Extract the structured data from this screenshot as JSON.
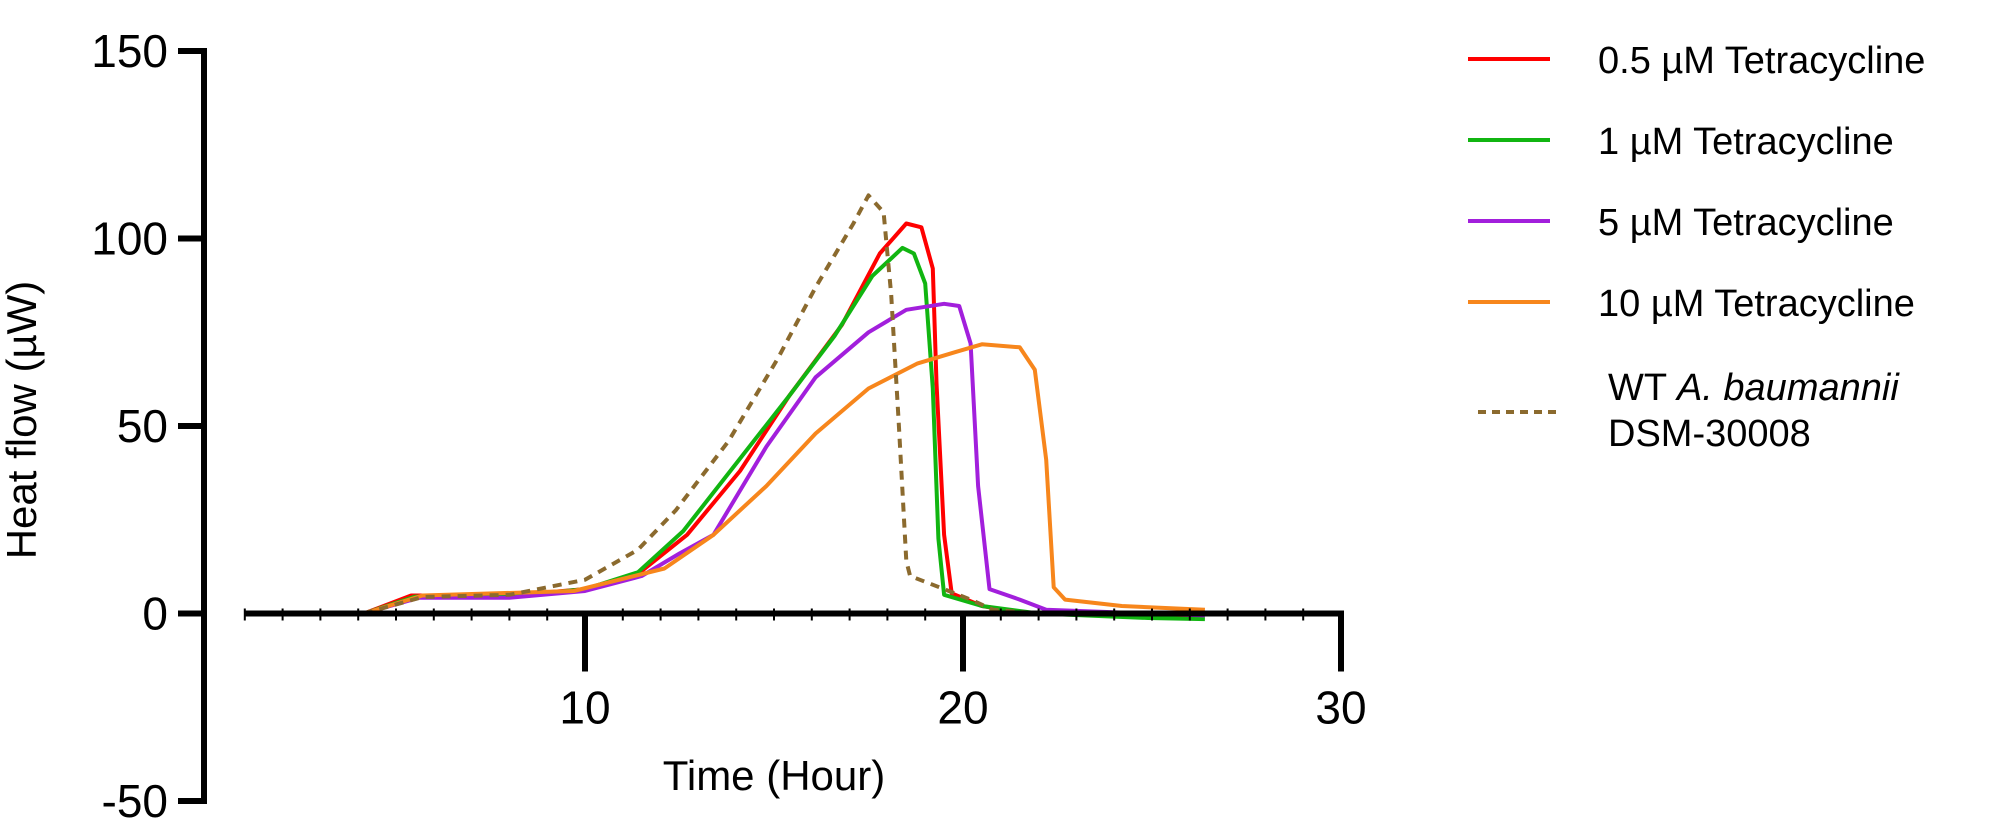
{
  "chart_data": {
    "type": "line",
    "title": "",
    "xlabel": "Time (Hour)",
    "ylabel": "Heat flow (µW)",
    "xlim": [
      0,
      30
    ],
    "ylim": [
      -50,
      150
    ],
    "xticks": [
      "10",
      "20",
      "30"
    ],
    "xtick_values": [
      10,
      20,
      30
    ],
    "yticks": [
      "150",
      "100",
      "50",
      "0",
      "-50"
    ],
    "ytick_values": [
      150,
      100,
      50,
      0,
      -50
    ],
    "grid": false,
    "legend_position": "top-right",
    "series": [
      {
        "name": "0.5 µM Tetracycline",
        "color": "#ff0000",
        "dash": false,
        "points": [
          [
            4.15,
            0
          ],
          [
            5.4,
            4.8
          ],
          [
            8,
            4.8
          ],
          [
            10,
            6.5
          ],
          [
            11.4,
            10.5
          ],
          [
            12.7,
            21
          ],
          [
            14.1,
            38
          ],
          [
            15.4,
            58
          ],
          [
            16.8,
            77
          ],
          [
            17.8,
            96
          ],
          [
            18.5,
            104
          ],
          [
            18.9,
            103
          ],
          [
            19.2,
            92
          ],
          [
            19.3,
            61.5
          ],
          [
            19.5,
            21
          ],
          [
            19.7,
            5.4
          ],
          [
            20.5,
            2
          ],
          [
            21.5,
            0.3
          ],
          [
            24.9,
            -0.7
          ],
          [
            26.4,
            -0.3
          ]
        ]
      },
      {
        "name": "1 µM Tetracycline",
        "color": "#11b511",
        "dash": false,
        "points": [
          [
            4.15,
            0
          ],
          [
            5.5,
            4.5
          ],
          [
            8,
            4.5
          ],
          [
            10,
            6.5
          ],
          [
            11.4,
            11
          ],
          [
            12.6,
            22
          ],
          [
            14,
            40
          ],
          [
            15.4,
            58
          ],
          [
            16.6,
            74
          ],
          [
            17.6,
            90
          ],
          [
            18.4,
            97.5
          ],
          [
            18.7,
            96
          ],
          [
            19,
            88
          ],
          [
            19.2,
            60
          ],
          [
            19.35,
            20
          ],
          [
            19.5,
            5
          ],
          [
            20.5,
            2
          ],
          [
            22,
            0
          ],
          [
            24.9,
            -1.2
          ],
          [
            26.4,
            -1.5
          ]
        ]
      },
      {
        "name": "5 µM Tetracycline",
        "color": "#a21fdc",
        "dash": false,
        "points": [
          [
            4.15,
            0
          ],
          [
            5.6,
            4.2
          ],
          [
            8,
            4.2
          ],
          [
            10,
            6
          ],
          [
            11.5,
            10
          ],
          [
            12.5,
            16
          ],
          [
            13.4,
            21
          ],
          [
            14.8,
            44.5
          ],
          [
            16.1,
            63
          ],
          [
            17.5,
            75
          ],
          [
            18.5,
            81
          ],
          [
            19.5,
            82.6
          ],
          [
            19.9,
            82
          ],
          [
            20.2,
            72
          ],
          [
            20.4,
            34
          ],
          [
            20.7,
            6.5
          ],
          [
            21.5,
            3.7
          ],
          [
            22.2,
            1
          ],
          [
            24.9,
            0
          ],
          [
            26.4,
            -0.5
          ]
        ]
      },
      {
        "name": "10 µM Tetracycline",
        "color": "#f7861c",
        "dash": false,
        "points": [
          [
            4.15,
            0
          ],
          [
            5.7,
            4.8
          ],
          [
            9.7,
            6
          ],
          [
            12.1,
            12
          ],
          [
            13.4,
            21
          ],
          [
            14.8,
            34
          ],
          [
            16.1,
            48
          ],
          [
            17.5,
            60
          ],
          [
            18.8,
            66.7
          ],
          [
            19.8,
            69.7
          ],
          [
            20.5,
            71.8
          ],
          [
            21.5,
            71
          ],
          [
            21.9,
            65
          ],
          [
            22.2,
            41
          ],
          [
            22.4,
            7
          ],
          [
            22.7,
            3.7
          ],
          [
            24.2,
            2
          ],
          [
            26.4,
            1
          ]
        ]
      },
      {
        "name": "WT A. baumannii DSM-30008",
        "color": "#8b6a2e",
        "dash": true,
        "points": [
          [
            4.15,
            0
          ],
          [
            5.7,
            4.4
          ],
          [
            8,
            5
          ],
          [
            10,
            9
          ],
          [
            11.4,
            17
          ],
          [
            12.4,
            27.5
          ],
          [
            13.8,
            46
          ],
          [
            15.1,
            68
          ],
          [
            16.1,
            87
          ],
          [
            17.1,
            104
          ],
          [
            17.5,
            111.5
          ],
          [
            17.9,
            107
          ],
          [
            18.1,
            85
          ],
          [
            18.3,
            51
          ],
          [
            18.5,
            14
          ],
          [
            18.6,
            10
          ],
          [
            19.5,
            6.5
          ],
          [
            20.2,
            3.7
          ],
          [
            20.8,
            1
          ],
          [
            22,
            0
          ]
        ]
      }
    ],
    "legend": [
      {
        "label": "0.5 µM Tetracycline"
      },
      {
        "label": "1 µM Tetracycline"
      },
      {
        "label": "5 µM Tetracycline"
      },
      {
        "label": "10 µM Tetracycline"
      },
      {
        "label_prefix": "WT ",
        "label_italic": "A. baumannii",
        "label_line2": "DSM-30008"
      }
    ]
  }
}
